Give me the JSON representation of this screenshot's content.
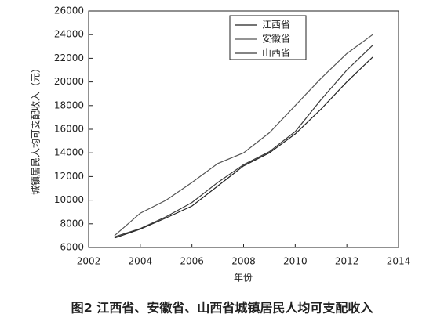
{
  "chart_data": {
    "type": "line",
    "title": "图2 江西省、安徽省、山西省城镇居民人均可支配收入",
    "x_label": "年份",
    "y_label": "城镇居民人均可支配收入（元）",
    "x": [
      2003,
      2004,
      2005,
      2006,
      2007,
      2008,
      2009,
      2010,
      2011,
      2012,
      2013
    ],
    "series": [
      {
        "name": "江西省",
        "color": "#222222",
        "values": [
          6800,
          7550,
          8500,
          9500,
          11200,
          12900,
          14000,
          15600,
          17700,
          20000,
          22100
        ]
      },
      {
        "name": "安徽省",
        "color": "#555555",
        "values": [
          7000,
          8900,
          10000,
          11500,
          13100,
          14000,
          15700,
          18000,
          20300,
          22400,
          24000
        ]
      },
      {
        "name": "山西省",
        "color": "#3a3a3a",
        "values": [
          6900,
          7600,
          8600,
          9800,
          11500,
          13000,
          14100,
          15800,
          18500,
          21000,
          23100
        ]
      }
    ],
    "xlim": [
      2002,
      2014
    ],
    "xticks": [
      2002,
      2004,
      2006,
      2008,
      2010,
      2012,
      2014
    ],
    "ylim": [
      6000,
      26000
    ],
    "yticks": [
      6000,
      8000,
      10000,
      12000,
      14000,
      16000,
      18000,
      20000,
      22000,
      24000,
      26000
    ],
    "legend": "top-right"
  }
}
